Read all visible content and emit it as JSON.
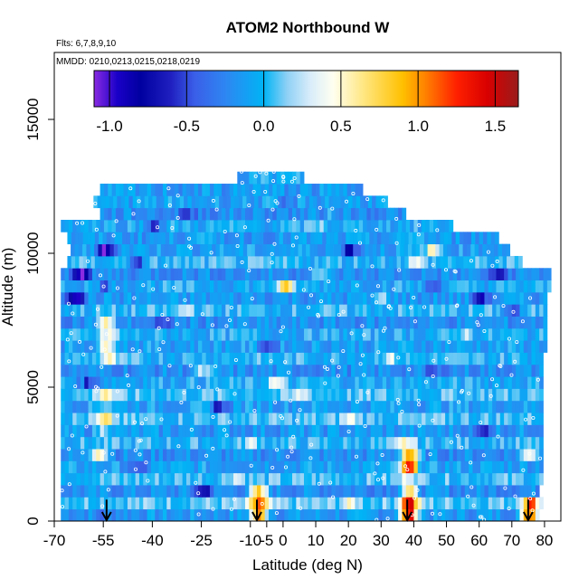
{
  "chart_data": {
    "type": "heatmap",
    "title": "ATOM2 Northbound W",
    "flights_label": "Flts: 6,7,8,9,10",
    "dates_label": "MMDD: 0210,0213,0215,0218,0219",
    "xlabel": "Latitude (deg N)",
    "ylabel": "Altitude (m)",
    "xlim": [
      -70,
      85
    ],
    "ylim": [
      0,
      17500
    ],
    "x_ticks": [
      {
        "value": -70,
        "label": "-70"
      },
      {
        "value": -55,
        "label": "-55"
      },
      {
        "value": -40,
        "label": "-40"
      },
      {
        "value": -25,
        "label": "-25"
      },
      {
        "value": -10,
        "label": "-10"
      },
      {
        "value": -5,
        "label": "-5"
      },
      {
        "value": 0,
        "label": "0"
      },
      {
        "value": 10,
        "label": "10"
      },
      {
        "value": 20,
        "label": "20"
      },
      {
        "value": 30,
        "label": "30"
      },
      {
        "value": 40,
        "label": "40"
      },
      {
        "value": 50,
        "label": "50"
      },
      {
        "value": 60,
        "label": "60"
      },
      {
        "value": 70,
        "label": "70"
      },
      {
        "value": 80,
        "label": "80"
      }
    ],
    "y_ticks": [
      {
        "value": 0,
        "label": "0"
      },
      {
        "value": 5000,
        "label": "5000"
      },
      {
        "value": 10000,
        "label": "10000"
      },
      {
        "value": 15000,
        "label": "15000"
      }
    ],
    "colorbar": {
      "range": [
        -1.1,
        1.65
      ],
      "ticks": [
        {
          "value": -1.0,
          "label": "-1.0"
        },
        {
          "value": -0.5,
          "label": "-0.5"
        },
        {
          "value": 0.0,
          "label": "0.0"
        },
        {
          "value": 0.5,
          "label": "0.5"
        },
        {
          "value": 1.0,
          "label": "1.0"
        },
        {
          "value": 1.5,
          "label": "1.5"
        }
      ],
      "stops": [
        {
          "value": -1.1,
          "color": "#8a2be2"
        },
        {
          "value": -0.95,
          "color": "#1a00c8"
        },
        {
          "value": -0.8,
          "color": "#0000a0"
        },
        {
          "value": -0.6,
          "color": "#2020c0"
        },
        {
          "value": -0.45,
          "color": "#3a5ee8"
        },
        {
          "value": -0.25,
          "color": "#2e86f2"
        },
        {
          "value": 0.0,
          "color": "#00b4f5"
        },
        {
          "value": 0.15,
          "color": "#8ed0f5"
        },
        {
          "value": 0.3,
          "color": "#d8ecfa"
        },
        {
          "value": 0.45,
          "color": "#fffff0"
        },
        {
          "value": 0.65,
          "color": "#ffe680"
        },
        {
          "value": 0.9,
          "color": "#ffc000"
        },
        {
          "value": 1.05,
          "color": "#ff8000"
        },
        {
          "value": 1.25,
          "color": "#ff2000"
        },
        {
          "value": 1.45,
          "color": "#d80000"
        },
        {
          "value": 1.65,
          "color": "#9a1c1c"
        }
      ]
    },
    "profile_markers_lat": [
      -54,
      -8,
      38,
      75
    ],
    "w_field": {
      "row_height_m": 450,
      "rows": [
        {
          "alt": 0,
          "lat0": -68,
          "lat1": 78,
          "base": -0.15,
          "hot": [
            [
              -56,
              -0.2
            ],
            [
              -8,
              1.1
            ],
            [
              38,
              1.5
            ],
            [
              75,
              1.3
            ]
          ]
        },
        {
          "alt": 450,
          "lat0": -68,
          "lat1": 79,
          "base": 0.1,
          "hot": [
            [
              -8,
              1.05
            ],
            [
              38,
              1.4
            ],
            [
              75,
              1.1
            ],
            [
              20,
              0.3
            ]
          ]
        },
        {
          "alt": 900,
          "lat0": -68,
          "lat1": 78,
          "base": -0.2,
          "hot": [
            [
              -8,
              0.9
            ],
            [
              38,
              0.8
            ],
            [
              -25,
              -0.5
            ]
          ]
        },
        {
          "alt": 1350,
          "lat0": -68,
          "lat1": 79,
          "base": 0.05,
          "hot": [
            [
              38,
              0.4
            ],
            [
              -15,
              0.3
            ]
          ]
        },
        {
          "alt": 1800,
          "lat0": -68,
          "lat1": 79,
          "base": -0.1,
          "hot": [
            [
              38,
              1.35
            ],
            [
              -45,
              -0.5
            ]
          ]
        },
        {
          "alt": 2250,
          "lat0": -68,
          "lat1": 79,
          "base": -0.2,
          "hot": [
            [
              38,
              1.2
            ],
            [
              -57,
              0.9
            ],
            [
              75,
              0.7
            ]
          ]
        },
        {
          "alt": 2700,
          "lat0": -68,
          "lat1": 79,
          "base": 0.0,
          "hot": [
            [
              37,
              0.5
            ],
            [
              -10,
              0.3
            ]
          ]
        },
        {
          "alt": 3150,
          "lat0": -68,
          "lat1": 79,
          "base": -0.15,
          "hot": [
            [
              -55,
              0.4
            ],
            [
              60,
              -0.45
            ]
          ]
        },
        {
          "alt": 3600,
          "lat0": -68,
          "lat1": 79,
          "base": 0.05,
          "hot": [
            [
              -55,
              0.55
            ],
            [
              20,
              0.35
            ]
          ]
        },
        {
          "alt": 4050,
          "lat0": -68,
          "lat1": 79,
          "base": -0.1,
          "hot": [
            [
              -20,
              -0.5
            ],
            [
              -55,
              0.3
            ]
          ]
        },
        {
          "alt": 4500,
          "lat0": -68,
          "lat1": 79,
          "base": 0.05,
          "hot": [
            [
              -55,
              0.6
            ],
            [
              5,
              0.3
            ]
          ]
        },
        {
          "alt": 4950,
          "lat0": -68,
          "lat1": 79,
          "base": -0.05,
          "hot": [
            [
              -3,
              0.45
            ],
            [
              -60,
              -0.5
            ]
          ]
        },
        {
          "alt": 5400,
          "lat0": -68,
          "lat1": 79,
          "base": -0.2,
          "hot": [
            [
              -25,
              0.4
            ],
            [
              45,
              -0.35
            ]
          ]
        },
        {
          "alt": 5850,
          "lat0": -68,
          "lat1": 79,
          "base": 0.0,
          "hot": [
            [
              -54,
              0.45
            ],
            [
              32,
              0.3
            ]
          ]
        },
        {
          "alt": 6300,
          "lat0": -68,
          "lat1": 80,
          "base": -0.1,
          "hot": [
            [
              -54,
              0.65
            ],
            [
              -5,
              -0.4
            ]
          ]
        },
        {
          "alt": 6750,
          "lat0": -68,
          "lat1": 80,
          "base": -0.05,
          "hot": [
            [
              -54,
              0.5
            ],
            [
              55,
              0.3
            ]
          ]
        },
        {
          "alt": 7200,
          "lat0": -68,
          "lat1": 80,
          "base": -0.2,
          "hot": [
            [
              -55,
              0.7
            ],
            [
              -38,
              -0.45
            ]
          ]
        },
        {
          "alt": 7650,
          "lat0": -68,
          "lat1": 80,
          "base": 0.0,
          "hot": [
            [
              -30,
              0.3
            ],
            [
              70,
              -0.5
            ]
          ]
        },
        {
          "alt": 8100,
          "lat0": -68,
          "lat1": 80,
          "base": -0.15,
          "hot": [
            [
              -64,
              -0.7
            ],
            [
              60,
              -0.6
            ],
            [
              30,
              0.3
            ]
          ]
        },
        {
          "alt": 8550,
          "lat0": -68,
          "lat1": 81,
          "base": -0.05,
          "hot": [
            [
              0,
              0.75
            ],
            [
              -55,
              -0.3
            ],
            [
              45,
              -0.4
            ]
          ]
        },
        {
          "alt": 9000,
          "lat0": -68,
          "lat1": 81,
          "base": -0.2,
          "hot": [
            [
              -62,
              -0.8
            ],
            [
              10,
              0.35
            ],
            [
              65,
              -0.55
            ]
          ]
        },
        {
          "alt": 9450,
          "lat0": -66,
          "lat1": 73,
          "base": 0.0,
          "hot": [
            [
              40,
              0.35
            ],
            [
              -45,
              -0.45
            ]
          ]
        },
        {
          "alt": 9900,
          "lat0": -65,
          "lat1": 69,
          "base": -0.1,
          "hot": [
            [
              -55,
              -0.85
            ],
            [
              45,
              0.55
            ],
            [
              20,
              -0.6
            ]
          ]
        },
        {
          "alt": 10350,
          "lat0": -66,
          "lat1": 66,
          "base": -0.15,
          "hot": [
            [
              -28,
              0.2
            ],
            [
              40,
              0.25
            ]
          ]
        },
        {
          "alt": 10800,
          "lat0": -68,
          "lat1": 51,
          "base": -0.05,
          "hot": [
            [
              -40,
              -0.4
            ],
            [
              10,
              0.2
            ]
          ]
        },
        {
          "alt": 11250,
          "lat0": -56,
          "lat1": 37,
          "base": -0.2,
          "hot": [
            [
              -30,
              -0.35
            ],
            [
              15,
              0.15
            ]
          ]
        },
        {
          "alt": 11700,
          "lat0": -58,
          "lat1": 32,
          "base": -0.1,
          "hot": [
            [
              0,
              -0.3
            ]
          ]
        },
        {
          "alt": 12150,
          "lat0": -56,
          "lat1": 24,
          "base": -0.15,
          "hot": [
            [
              -10,
              0.1
            ]
          ]
        },
        {
          "alt": 12600,
          "lat0": -14,
          "lat1": 6,
          "base": -0.05,
          "hot": []
        }
      ]
    }
  }
}
